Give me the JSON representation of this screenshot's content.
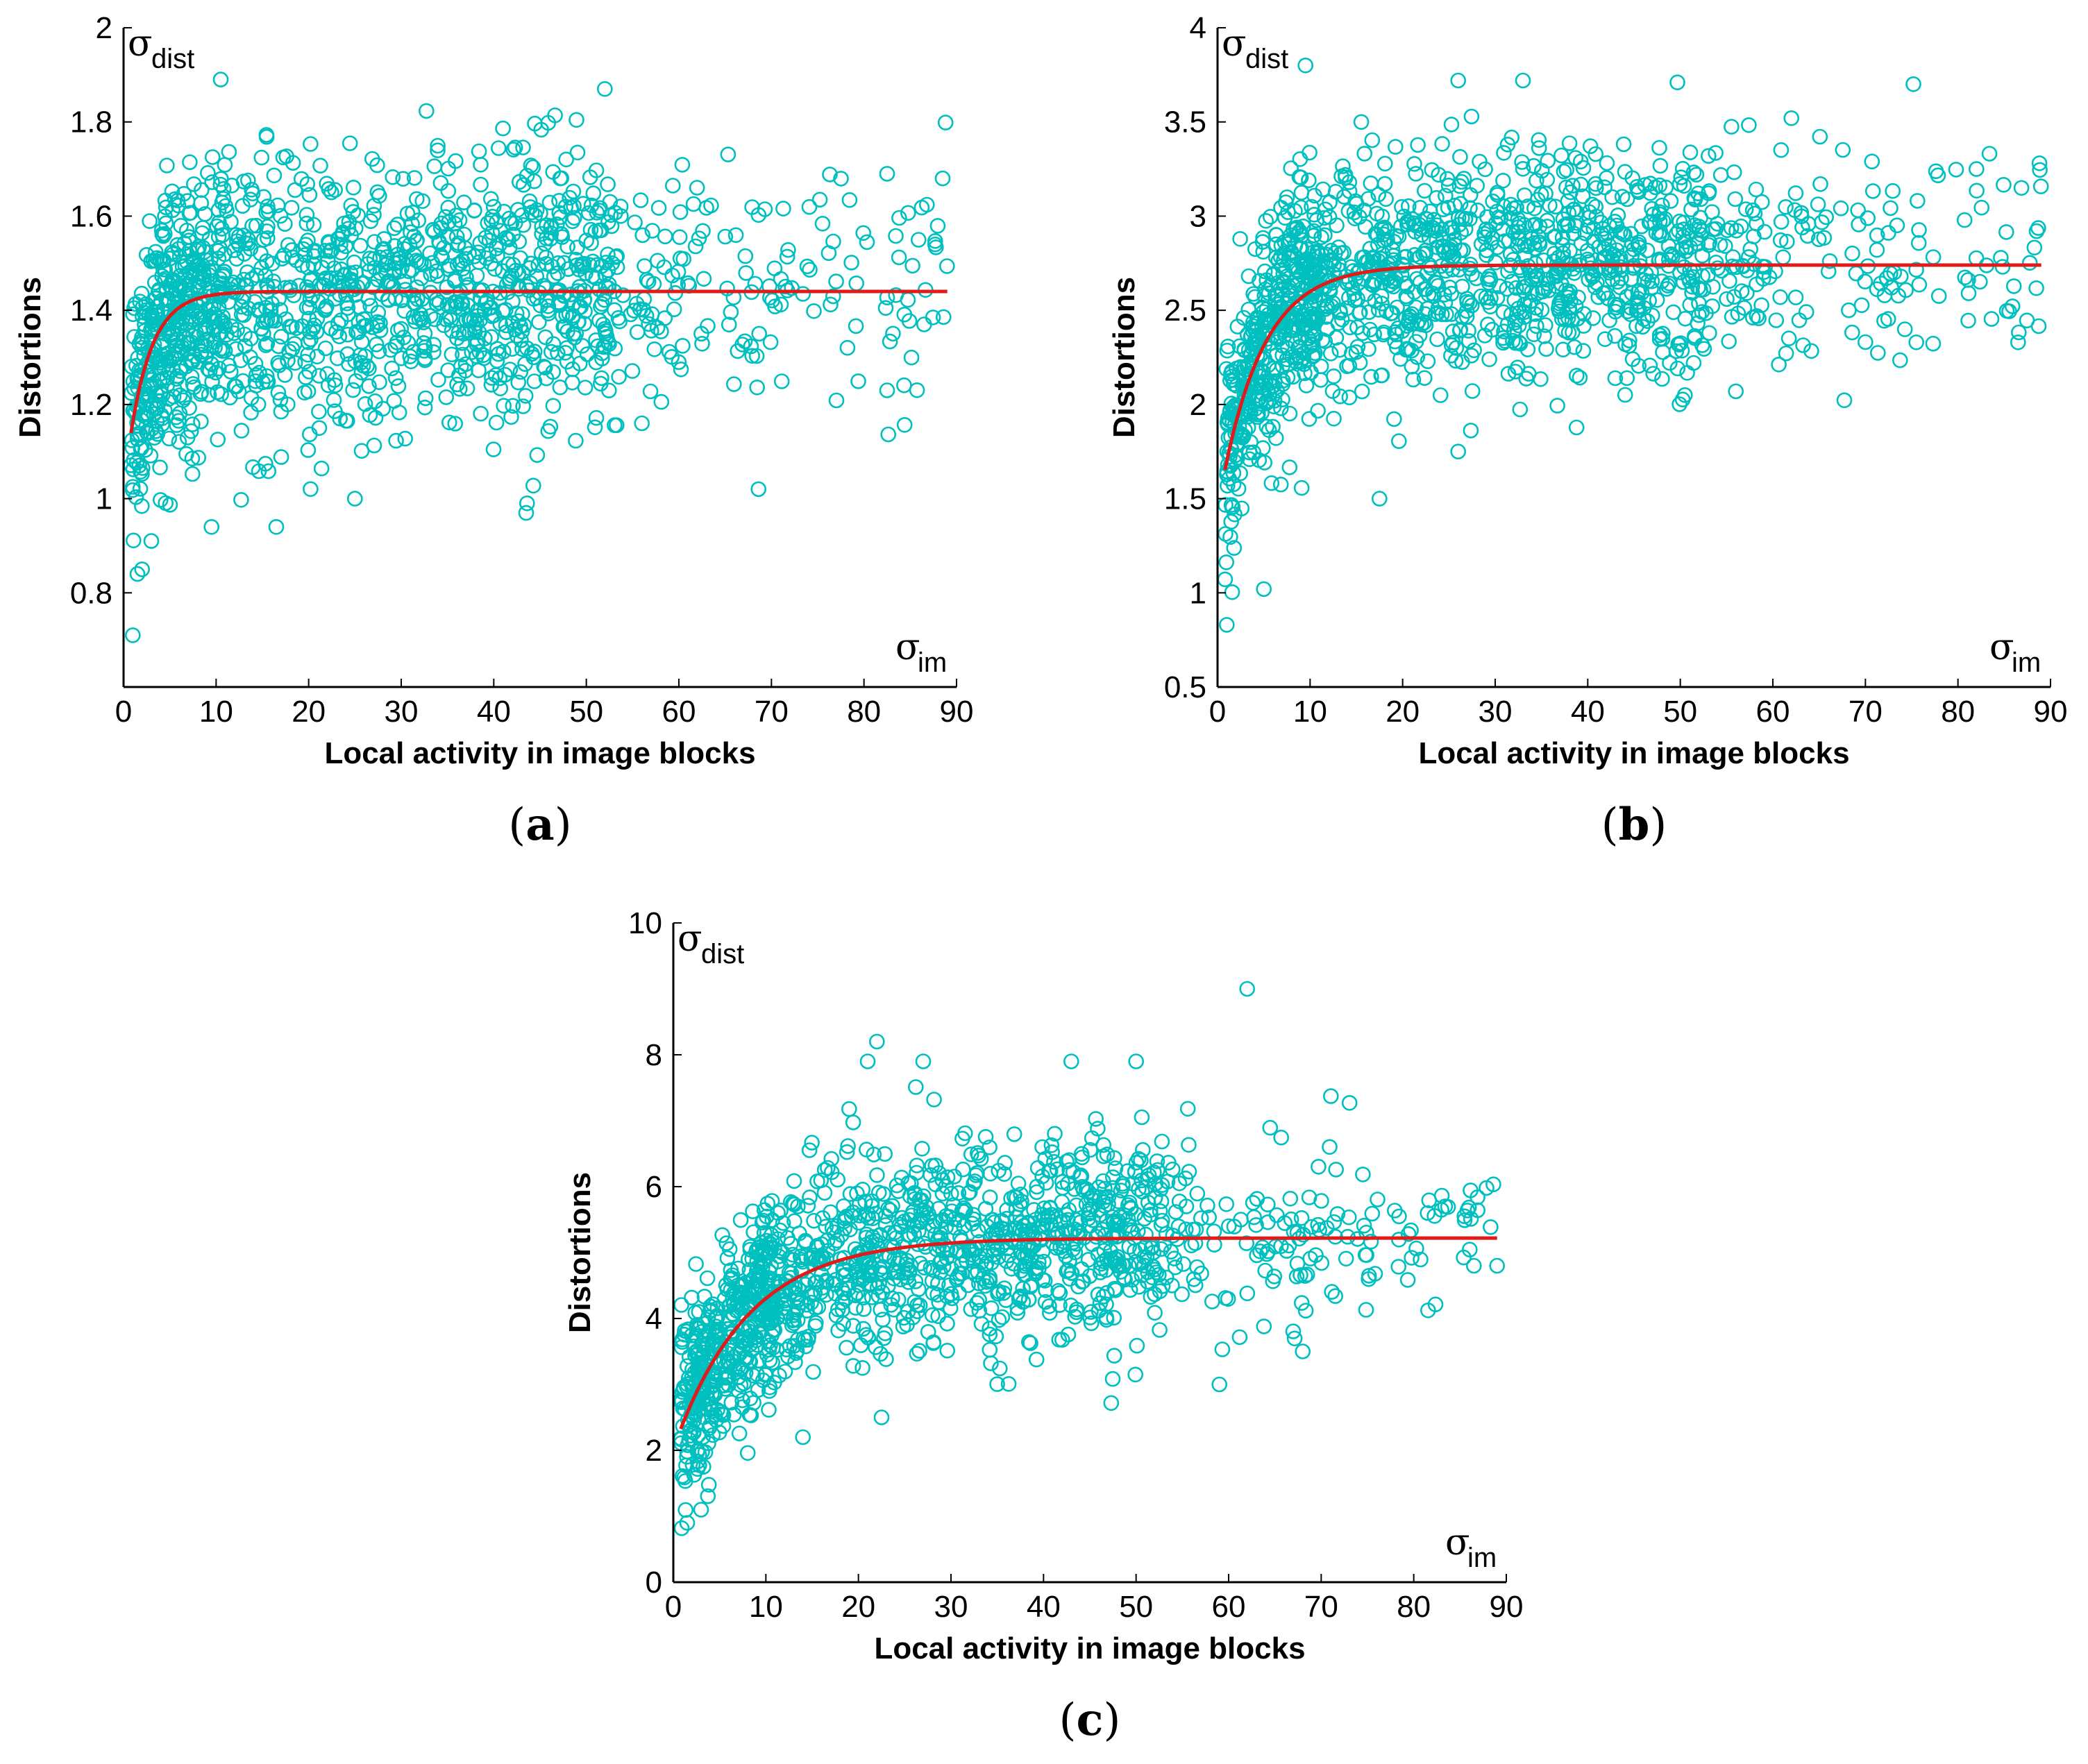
{
  "colors": {
    "scatter": "#00bfbf",
    "fit": "#e01b1b",
    "axis": "#000000"
  },
  "chart_data": [
    {
      "id": "a",
      "type": "scatter",
      "caption_letter": "a",
      "xlabel": "Local activity in image blocks",
      "ylabel": "Distortions",
      "y_symbol": "σ",
      "y_symbol_sub": "dist",
      "x_symbol": "σ",
      "x_symbol_sub": "im",
      "xlim": [
        0,
        90
      ],
      "ylim": [
        0.6,
        2.0
      ],
      "xticks": [
        0,
        10,
        20,
        30,
        40,
        50,
        60,
        70,
        80,
        90
      ],
      "xtick_labels": [
        "0",
        "10",
        "20",
        "30",
        "40",
        "50",
        "60",
        "70",
        "80",
        "90"
      ],
      "yticks": [
        0.8,
        1.0,
        1.2,
        1.4,
        1.6,
        1.8,
        2.0
      ],
      "ytick_labels": [
        "0.8",
        "1",
        "1.2",
        "1.4",
        "1.6",
        "1.8",
        "2"
      ],
      "fit": {
        "name": "fitted curve",
        "model": "a - b*exp(-x/tau)",
        "a": 1.44,
        "b": 0.42,
        "tau": 2.4,
        "x_range": [
          0.8,
          89
        ]
      },
      "scatter_model": {
        "n": 1500,
        "center": "fit",
        "spread": 0.14
      },
      "outliers": [
        [
          1,
          0.71
        ],
        [
          1.5,
          0.84
        ],
        [
          2,
          0.85
        ],
        [
          3,
          0.91
        ],
        [
          10.5,
          1.89
        ],
        [
          52,
          1.87
        ],
        [
          88.5,
          1.68
        ],
        [
          82.5,
          1.69
        ],
        [
          82.5,
          1.23
        ],
        [
          86.5,
          1.37
        ],
        [
          16.5,
          0.94
        ],
        [
          9.5,
          0.94
        ],
        [
          25,
          1.0
        ],
        [
          56,
          1.16
        ]
      ]
    },
    {
      "id": "b",
      "type": "scatter",
      "caption_letter": "b",
      "xlabel": "Local activity in image blocks",
      "ylabel": "Distortions",
      "y_symbol": "σ",
      "y_symbol_sub": "dist",
      "x_symbol": "σ",
      "x_symbol_sub": "im",
      "xlim": [
        0,
        90
      ],
      "ylim": [
        0.5,
        4.0
      ],
      "xticks": [
        0,
        10,
        20,
        30,
        40,
        50,
        60,
        70,
        80,
        90
      ],
      "xtick_labels": [
        "0",
        "10",
        "20",
        "30",
        "40",
        "50",
        "60",
        "70",
        "80",
        "90"
      ],
      "yticks": [
        0.5,
        1.0,
        1.5,
        2.0,
        2.5,
        3.0,
        3.5,
        4.0
      ],
      "ytick_labels": [
        "0.5",
        "1",
        "1.5",
        "2",
        "2.5",
        "3",
        "3.5",
        "4"
      ],
      "fit": {
        "name": "fitted curve",
        "model": "a - b*exp(-x/tau)",
        "a": 2.74,
        "b": 1.3,
        "tau": 4.5,
        "x_range": [
          0.8,
          89
        ]
      },
      "scatter_model": {
        "n": 1500,
        "center": "fit",
        "spread": 0.3
      },
      "outliers": [
        [
          1,
          0.83
        ],
        [
          5,
          1.02
        ],
        [
          9.5,
          3.8
        ],
        [
          33,
          3.72
        ],
        [
          26,
          3.72
        ],
        [
          17.5,
          1.5
        ],
        [
          26,
          1.75
        ],
        [
          88.5,
          2.92
        ],
        [
          86.5,
          2.33
        ],
        [
          82,
          3.25
        ],
        [
          62,
          3.52
        ],
        [
          56,
          2.07
        ],
        [
          50.5,
          2.05
        ],
        [
          75.5,
          2.33
        ]
      ]
    },
    {
      "id": "c",
      "type": "scatter",
      "caption_letter": "c",
      "xlabel": "Local activity in image blocks",
      "ylabel": "Distortions",
      "y_symbol": "σ",
      "y_symbol_sub": "dist",
      "x_symbol": "σ",
      "x_symbol_sub": "im",
      "xlim": [
        0,
        90
      ],
      "ylim": [
        0,
        10
      ],
      "xticks": [
        0,
        10,
        20,
        30,
        40,
        50,
        60,
        70,
        80,
        90
      ],
      "xtick_labels": [
        "0",
        "10",
        "20",
        "30",
        "40",
        "50",
        "60",
        "70",
        "80",
        "90"
      ],
      "yticks": [
        0,
        2,
        4,
        6,
        8,
        10
      ],
      "ytick_labels": [
        "0",
        "2",
        "4",
        "6",
        "8",
        "10"
      ],
      "fit": {
        "name": "fitted curve",
        "model": "a - b*exp(-x/tau)",
        "a": 5.22,
        "b": 3.2,
        "tau": 8.0,
        "x_range": [
          0.8,
          89
        ]
      },
      "scatter_model": {
        "n": 1500,
        "center": "fit",
        "spread": 0.75
      },
      "outliers": [
        [
          62,
          9.0
        ],
        [
          22,
          8.2
        ],
        [
          21,
          7.9
        ],
        [
          27,
          7.9
        ],
        [
          43,
          7.9
        ],
        [
          50,
          7.9
        ],
        [
          1.5,
          0.9
        ],
        [
          3,
          1.1
        ],
        [
          89,
          4.8
        ],
        [
          86.5,
          4.8
        ],
        [
          81.5,
          5.6
        ],
        [
          68,
          3.5
        ],
        [
          59,
          3.0
        ],
        [
          14,
          2.2
        ],
        [
          22.5,
          2.5
        ]
      ]
    }
  ]
}
